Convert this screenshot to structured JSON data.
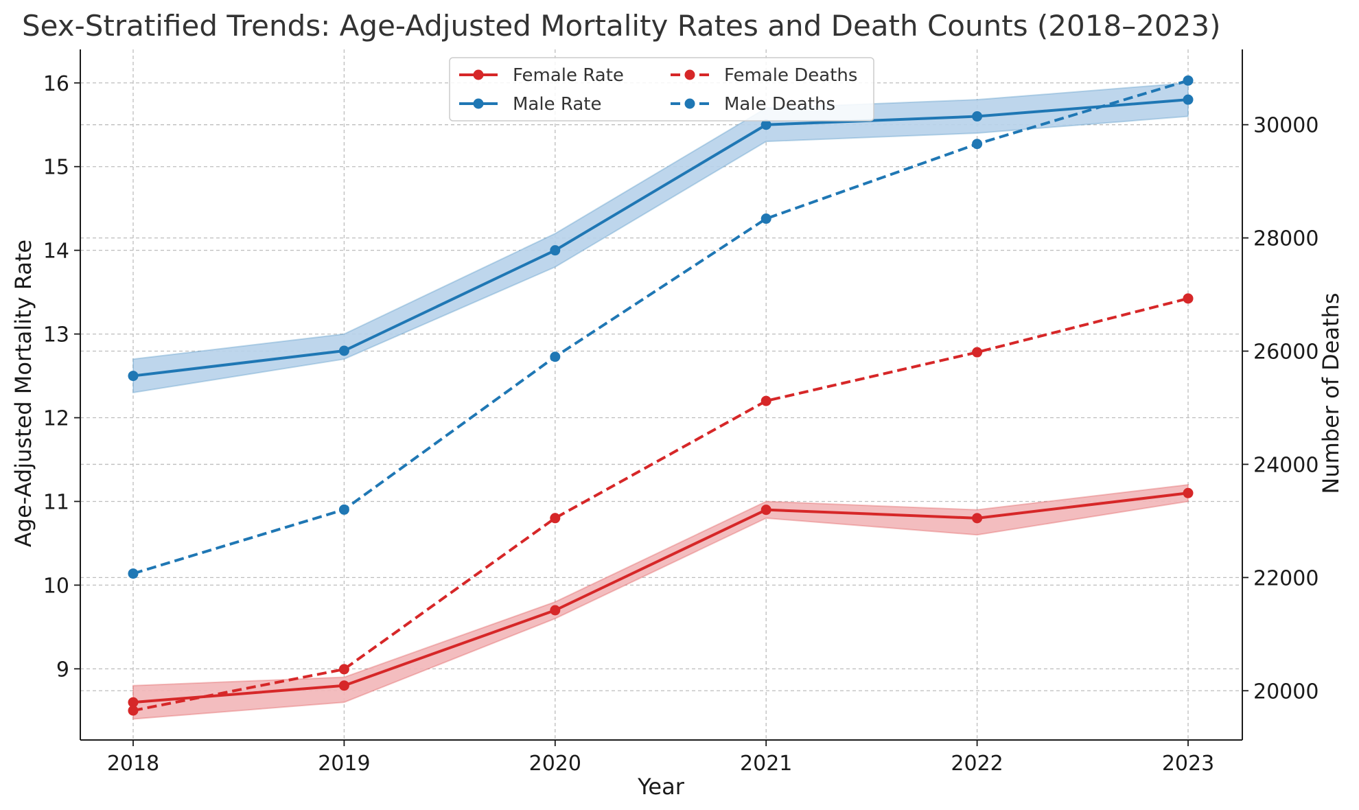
{
  "chart_data": {
    "type": "line",
    "title": "Sex-Stratified Trends: Age-Adjusted Mortality Rates and Death Counts (2018–2023)",
    "xlabel": "Year",
    "ylabel_left": "Age-Adjusted Mortality Rate",
    "ylabel_right": "Number of Deaths",
    "x": [
      "2018",
      "2019",
      "2020",
      "2021",
      "2022",
      "2023"
    ],
    "ylim_left": [
      8.15,
      16.4
    ],
    "ylim_right": [
      19130,
      31330
    ],
    "yticks_left": [
      9,
      10,
      11,
      12,
      13,
      14,
      15,
      16
    ],
    "yticks_right": [
      20000,
      22000,
      24000,
      26000,
      28000,
      30000
    ],
    "grid": true,
    "legend_position": "upper center",
    "series": [
      {
        "name": "Female Rate",
        "axis": "left",
        "style": "solid",
        "color": "#d62728",
        "band_color": "#f2b6b8",
        "values": [
          8.6,
          8.8,
          9.7,
          10.9,
          10.8,
          11.1
        ],
        "lower": [
          8.4,
          8.6,
          9.6,
          10.8,
          10.6,
          11.0
        ],
        "upper": [
          8.8,
          8.9,
          9.8,
          11.0,
          10.9,
          11.2
        ]
      },
      {
        "name": "Male Rate",
        "axis": "left",
        "style": "solid",
        "color": "#1f77b4",
        "band_color": "#b7d2ea",
        "values": [
          12.5,
          12.8,
          14.0,
          15.5,
          15.6,
          15.8
        ],
        "lower": [
          12.3,
          12.7,
          13.8,
          15.3,
          15.4,
          15.6
        ],
        "upper": [
          12.7,
          13.0,
          14.2,
          15.7,
          15.8,
          16.0
        ]
      },
      {
        "name": "Female Deaths",
        "axis": "right",
        "style": "dashed",
        "color": "#d62728",
        "values": [
          19650,
          20380,
          23050,
          25120,
          25980,
          26930
        ]
      },
      {
        "name": "Male Deaths",
        "axis": "right",
        "style": "dashed",
        "color": "#1f77b4",
        "values": [
          22070,
          23200,
          25900,
          28340,
          29660,
          30780
        ]
      }
    ]
  }
}
